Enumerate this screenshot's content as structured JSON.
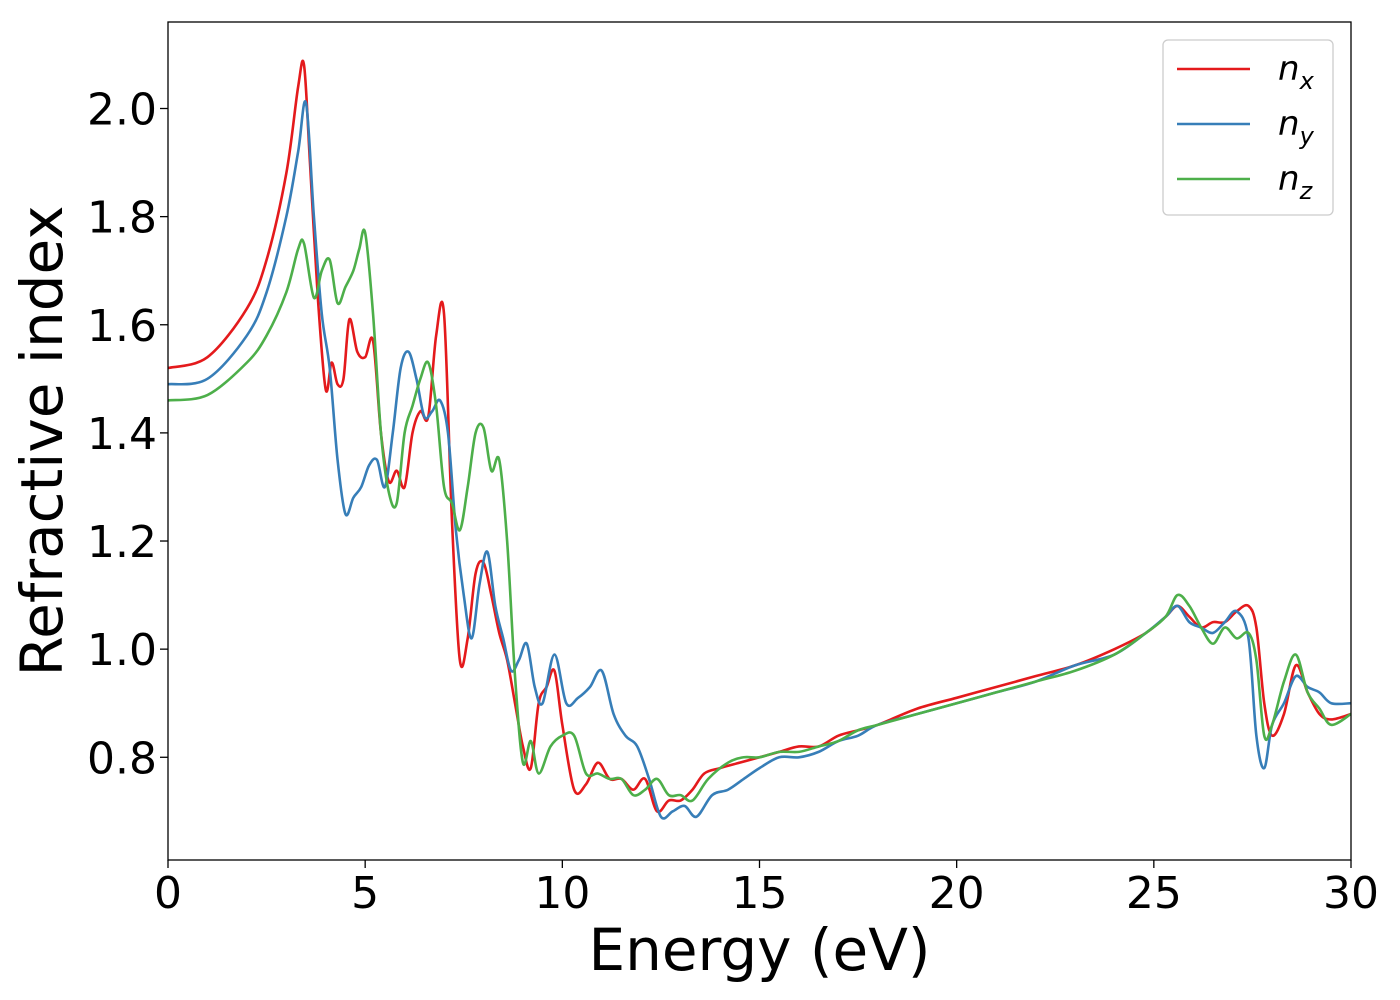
{
  "chart_data": {
    "type": "line",
    "title": "",
    "xlabel": "Energy (eV)",
    "ylabel": "Refractive index",
    "xlim": [
      0,
      30
    ],
    "ylim": [
      0.61,
      2.16
    ],
    "xticks": [
      0,
      5,
      10,
      15,
      20,
      25,
      30
    ],
    "yticks": [
      0.8,
      1.0,
      1.2,
      1.4,
      1.6,
      1.8,
      2.0
    ],
    "xtick_labels": [
      "0",
      "5",
      "10",
      "15",
      "20",
      "25",
      "30"
    ],
    "ytick_labels": [
      "0.8",
      "1.0",
      "1.2",
      "1.4",
      "1.6",
      "1.8",
      "2.0"
    ],
    "grid": false,
    "legend_position": "top-right",
    "series": [
      {
        "name": "n_x",
        "label_base": "n",
        "label_sub": "x",
        "color": "#e41a1c",
        "x": [
          0,
          1.0,
          2.0,
          2.5,
          3.0,
          3.3,
          3.45,
          3.6,
          3.8,
          4.0,
          4.15,
          4.3,
          4.45,
          4.6,
          4.8,
          5.0,
          5.2,
          5.4,
          5.6,
          5.8,
          6.0,
          6.2,
          6.4,
          6.6,
          6.8,
          7.0,
          7.2,
          7.4,
          7.6,
          7.8,
          8.0,
          8.2,
          8.4,
          8.6,
          8.8,
          9.0,
          9.2,
          9.4,
          9.6,
          9.8,
          10.0,
          10.3,
          10.6,
          10.9,
          11.2,
          11.5,
          11.8,
          12.1,
          12.4,
          12.7,
          13.0,
          13.3,
          13.6,
          14.0,
          14.5,
          15.0,
          15.5,
          16.0,
          16.5,
          17.0,
          17.5,
          18.0,
          19.0,
          20.0,
          21.0,
          22.0,
          23.0,
          24.0,
          24.8,
          25.3,
          25.6,
          25.9,
          26.2,
          26.5,
          26.8,
          27.1,
          27.4,
          27.6,
          27.8,
          28.0,
          28.3,
          28.6,
          28.9,
          29.2,
          29.5,
          30.0
        ],
        "y": [
          1.52,
          1.54,
          1.63,
          1.72,
          1.88,
          2.04,
          2.08,
          1.9,
          1.65,
          1.48,
          1.53,
          1.49,
          1.5,
          1.61,
          1.55,
          1.54,
          1.57,
          1.4,
          1.31,
          1.33,
          1.3,
          1.4,
          1.44,
          1.43,
          1.58,
          1.62,
          1.24,
          0.98,
          1.02,
          1.14,
          1.16,
          1.1,
          1.03,
          0.98,
          0.9,
          0.82,
          0.78,
          0.9,
          0.93,
          0.96,
          0.86,
          0.74,
          0.75,
          0.79,
          0.76,
          0.76,
          0.74,
          0.76,
          0.7,
          0.72,
          0.72,
          0.74,
          0.77,
          0.78,
          0.79,
          0.8,
          0.81,
          0.82,
          0.82,
          0.84,
          0.85,
          0.86,
          0.89,
          0.91,
          0.93,
          0.95,
          0.97,
          1.0,
          1.03,
          1.06,
          1.08,
          1.06,
          1.04,
          1.05,
          1.05,
          1.07,
          1.08,
          1.04,
          0.9,
          0.84,
          0.88,
          0.97,
          0.92,
          0.88,
          0.87,
          0.88
        ]
      },
      {
        "name": "n_y",
        "label_base": "n",
        "label_sub": "y",
        "color": "#377eb8",
        "x": [
          0,
          1.0,
          2.0,
          2.5,
          3.0,
          3.3,
          3.5,
          3.7,
          3.9,
          4.1,
          4.3,
          4.5,
          4.7,
          4.9,
          5.1,
          5.3,
          5.5,
          5.7,
          5.9,
          6.1,
          6.3,
          6.5,
          6.7,
          6.9,
          7.1,
          7.3,
          7.5,
          7.7,
          7.9,
          8.1,
          8.3,
          8.5,
          8.7,
          8.9,
          9.1,
          9.3,
          9.5,
          9.8,
          10.1,
          10.4,
          10.7,
          11.0,
          11.3,
          11.6,
          11.9,
          12.2,
          12.5,
          12.8,
          13.1,
          13.4,
          13.8,
          14.2,
          14.6,
          15.0,
          15.5,
          16.0,
          16.5,
          17.0,
          17.5,
          18.0,
          19.0,
          20.0,
          21.0,
          22.0,
          23.0,
          24.0,
          24.8,
          25.3,
          25.6,
          25.9,
          26.2,
          26.5,
          26.8,
          27.1,
          27.4,
          27.6,
          27.8,
          28.0,
          28.3,
          28.6,
          28.9,
          29.2,
          29.5,
          30.0
        ],
        "y": [
          1.49,
          1.5,
          1.58,
          1.66,
          1.8,
          1.92,
          2.01,
          1.8,
          1.62,
          1.52,
          1.35,
          1.25,
          1.28,
          1.3,
          1.34,
          1.35,
          1.3,
          1.4,
          1.52,
          1.55,
          1.5,
          1.43,
          1.44,
          1.46,
          1.4,
          1.22,
          1.1,
          1.02,
          1.12,
          1.18,
          1.08,
          1.02,
          0.96,
          0.98,
          1.01,
          0.93,
          0.9,
          0.99,
          0.9,
          0.91,
          0.93,
          0.96,
          0.88,
          0.84,
          0.82,
          0.76,
          0.69,
          0.7,
          0.71,
          0.69,
          0.73,
          0.74,
          0.76,
          0.78,
          0.8,
          0.8,
          0.81,
          0.83,
          0.84,
          0.86,
          0.88,
          0.9,
          0.92,
          0.94,
          0.97,
          0.99,
          1.03,
          1.06,
          1.08,
          1.05,
          1.04,
          1.03,
          1.05,
          1.07,
          1.02,
          0.84,
          0.78,
          0.86,
          0.9,
          0.95,
          0.93,
          0.92,
          0.9,
          0.9
        ]
      },
      {
        "name": "n_z",
        "label_base": "n",
        "label_sub": "z",
        "color": "#4daf4a",
        "x": [
          0,
          1.0,
          2.0,
          2.5,
          3.0,
          3.3,
          3.45,
          3.7,
          3.9,
          4.1,
          4.3,
          4.5,
          4.7,
          4.85,
          5.0,
          5.2,
          5.4,
          5.6,
          5.8,
          6.0,
          6.2,
          6.4,
          6.6,
          6.8,
          7.0,
          7.2,
          7.4,
          7.6,
          7.8,
          8.0,
          8.2,
          8.4,
          8.6,
          8.8,
          9.0,
          9.2,
          9.4,
          9.7,
          10.0,
          10.3,
          10.6,
          10.9,
          11.2,
          11.5,
          11.8,
          12.1,
          12.4,
          12.7,
          13.0,
          13.3,
          13.7,
          14.2,
          14.6,
          15.0,
          15.5,
          16.0,
          16.5,
          17.0,
          17.5,
          18.0,
          19.0,
          20.0,
          21.0,
          22.0,
          23.0,
          24.0,
          24.8,
          25.3,
          25.6,
          25.9,
          26.2,
          26.5,
          26.8,
          27.1,
          27.4,
          27.6,
          27.8,
          28.0,
          28.3,
          28.6,
          28.9,
          29.2,
          29.5,
          30.0
        ],
        "y": [
          1.46,
          1.47,
          1.53,
          1.58,
          1.66,
          1.74,
          1.75,
          1.65,
          1.7,
          1.72,
          1.64,
          1.67,
          1.7,
          1.74,
          1.77,
          1.62,
          1.4,
          1.29,
          1.27,
          1.4,
          1.45,
          1.5,
          1.53,
          1.45,
          1.3,
          1.27,
          1.22,
          1.3,
          1.4,
          1.41,
          1.33,
          1.35,
          1.2,
          0.95,
          0.79,
          0.83,
          0.77,
          0.82,
          0.84,
          0.84,
          0.77,
          0.77,
          0.76,
          0.76,
          0.73,
          0.74,
          0.76,
          0.73,
          0.73,
          0.72,
          0.76,
          0.79,
          0.8,
          0.8,
          0.81,
          0.81,
          0.82,
          0.83,
          0.85,
          0.86,
          0.88,
          0.9,
          0.92,
          0.94,
          0.96,
          0.99,
          1.03,
          1.06,
          1.1,
          1.08,
          1.04,
          1.01,
          1.04,
          1.02,
          1.03,
          0.98,
          0.84,
          0.86,
          0.94,
          0.99,
          0.92,
          0.89,
          0.86,
          0.88
        ]
      }
    ]
  }
}
